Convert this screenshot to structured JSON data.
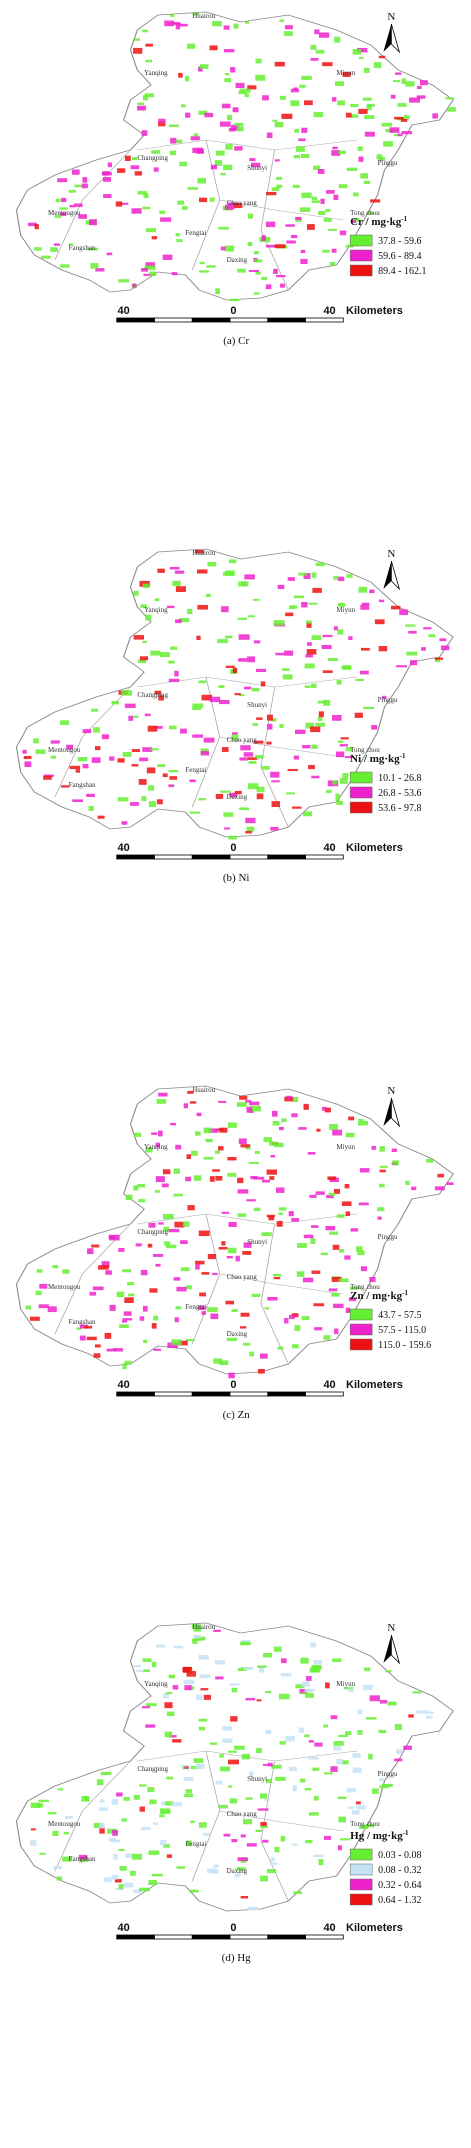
{
  "north": "N",
  "scale": {
    "left": "40",
    "center": "0",
    "right": "40",
    "unit": "Kilometers"
  },
  "places": [
    "Huairou",
    "Yanqing",
    "Miyun",
    "Changping",
    "Shunyi",
    "Mentougou",
    "Fangshan",
    "Daxing",
    "Pinggu",
    "Chao yang",
    "Fengtai",
    "Tong zhou"
  ],
  "panels": [
    {
      "caption": "(a) Cr",
      "legend": {
        "title": "Cr / mg·kg",
        "title_sup": "-1",
        "classes": [
          {
            "label": "37.8 - 59.6",
            "color": "#66ee33"
          },
          {
            "label": "59.6 - 89.4",
            "color": "#ee22cc"
          },
          {
            "label": "89.4 - 162.1",
            "color": "#ee1111"
          }
        ]
      }
    },
    {
      "caption": "(b) Ni",
      "legend": {
        "title": "Ni / mg·kg",
        "title_sup": "-1",
        "classes": [
          {
            "label": "10.1 - 26.8",
            "color": "#66ee33"
          },
          {
            "label": "26.8 - 53.6",
            "color": "#ee22cc"
          },
          {
            "label": "53.6 - 97.8",
            "color": "#ee1111"
          }
        ]
      }
    },
    {
      "caption": "(c) Zn",
      "legend": {
        "title": "Zn / mg·kg",
        "title_sup": "-1",
        "classes": [
          {
            "label": "43.7 - 57.5",
            "color": "#66ee33"
          },
          {
            "label": "57.5 - 115.0",
            "color": "#ee22cc"
          },
          {
            "label": "115.0 - 159.6",
            "color": "#ee1111"
          }
        ]
      }
    },
    {
      "caption": "(d) Hg",
      "legend": {
        "title": "Hg / mg·kg",
        "title_sup": "-1",
        "classes": [
          {
            "label": "0.03 - 0.08",
            "color": "#66ee33"
          },
          {
            "label": "0.08 - 0.32",
            "color": "#c6e2f5"
          },
          {
            "label": "0.32 - 0.64",
            "color": "#ee22cc"
          },
          {
            "label": "0.64 - 1.32",
            "color": "#ee1111"
          }
        ]
      }
    }
  ]
}
